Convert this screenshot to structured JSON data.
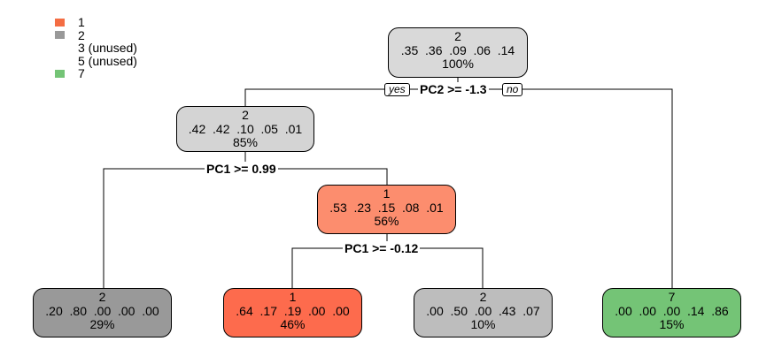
{
  "legend": [
    {
      "label": "1",
      "color": "#f46d43",
      "has_swatch": true
    },
    {
      "label": "2",
      "color": "#999999",
      "has_swatch": true
    },
    {
      "label": "3 (unused)",
      "color": "",
      "has_swatch": false
    },
    {
      "label": "5 (unused)",
      "color": "",
      "has_swatch": false
    },
    {
      "label": "7",
      "color": "#74c476",
      "has_swatch": true
    }
  ],
  "nodes": [
    {
      "id": "root",
      "class": "2",
      "probs": ".35  .36  .09  .06  .14",
      "pct": "100%",
      "fill": "#d9d9d9"
    },
    {
      "id": "n2",
      "class": "2",
      "probs": ".42  .42  .10  .05  .01",
      "pct": "85%",
      "fill": "#d4d4d4"
    },
    {
      "id": "n5",
      "class": "1",
      "probs": ".53  .23  .15  .08  .01",
      "pct": "56%",
      "fill": "#fc8d6e"
    },
    {
      "id": "leaf-a",
      "class": "2",
      "probs": ".20  .80  .00  .00  .00",
      "pct": "29%",
      "fill": "#999999"
    },
    {
      "id": "leaf-b",
      "class": "1",
      "probs": ".64  .17  .19  .00  .00",
      "pct": "46%",
      "fill": "#fd6b4d"
    },
    {
      "id": "leaf-c",
      "class": "2",
      "probs": ".00  .50  .00  .43  .07",
      "pct": "10%",
      "fill": "#bdbdbd"
    },
    {
      "id": "leaf-d",
      "class": "7",
      "probs": ".00  .00  .00  .14  .86",
      "pct": "15%",
      "fill": "#74c476"
    }
  ],
  "splits": {
    "root": "PC2 >= -1.3",
    "n2": "PC1 >= 0.99",
    "n5": "PC1 >= -0.12"
  },
  "branch_tags": {
    "yes": "yes",
    "no": "no"
  }
}
